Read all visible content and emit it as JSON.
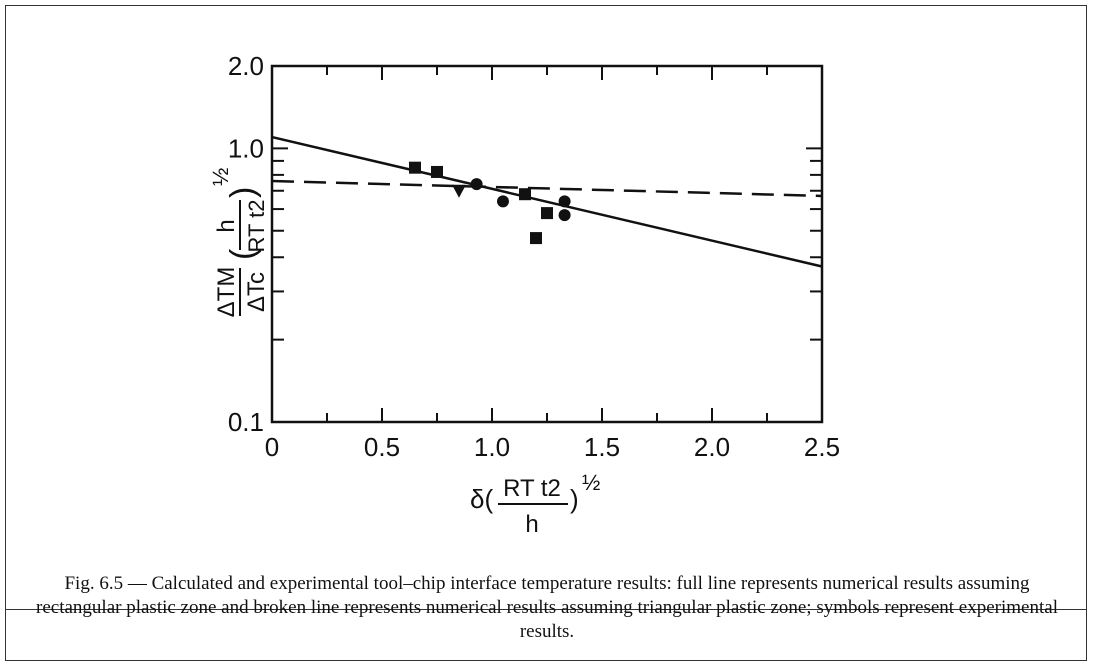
{
  "chart_data": {
    "type": "scatter",
    "x_axis": {
      "range": [
        0,
        2.5
      ],
      "ticks": [
        "0",
        "0.5",
        "1.0",
        "1.5",
        "2.0",
        "2.5"
      ],
      "tick_values": [
        0,
        0.5,
        1.0,
        1.5,
        2.0,
        2.5
      ]
    },
    "y_axis": {
      "scale": "log",
      "range": [
        0.1,
        2.0
      ],
      "ticks": [
        "0.1",
        "1.0",
        "2.0"
      ],
      "tick_values": [
        0.1,
        1.0,
        2.0
      ]
    },
    "xlabel": {
      "prefix": "δ(",
      "numerator": "RT t2",
      "denominator": "h",
      "suffix": ")",
      "exponent": "½"
    },
    "ylabel": {
      "fraction_num": "ΔTM",
      "fraction_den": "ΔTc",
      "inner_num": "h",
      "inner_den": "RT t2",
      "exponent": "½"
    },
    "grid": false,
    "series": [
      {
        "line": "solid",
        "x": [
          0,
          2.5
        ],
        "y": [
          1.1,
          0.37
        ]
      },
      {
        "line": "dashed",
        "x": [
          0,
          2.5
        ],
        "y": [
          0.76,
          0.67
        ]
      },
      {
        "marker": "square",
        "x": [
          0.65,
          0.75,
          1.15,
          1.2,
          1.25
        ],
        "y": [
          0.85,
          0.82,
          0.68,
          0.47,
          0.58
        ]
      },
      {
        "marker": "circle",
        "x": [
          0.93,
          1.05,
          1.33,
          1.33
        ],
        "y": [
          0.74,
          0.64,
          0.64,
          0.57
        ]
      },
      {
        "marker": "triangle-down",
        "x": [
          0.85
        ],
        "y": [
          0.7
        ]
      }
    ]
  },
  "caption": "Fig. 6.5 — Calculated and experimental tool–chip interface temperature results: full line represents numerical results assuming rectangular plastic zone and broken line represents numerical results assuming triangular plastic zone; symbols represent experimental results."
}
